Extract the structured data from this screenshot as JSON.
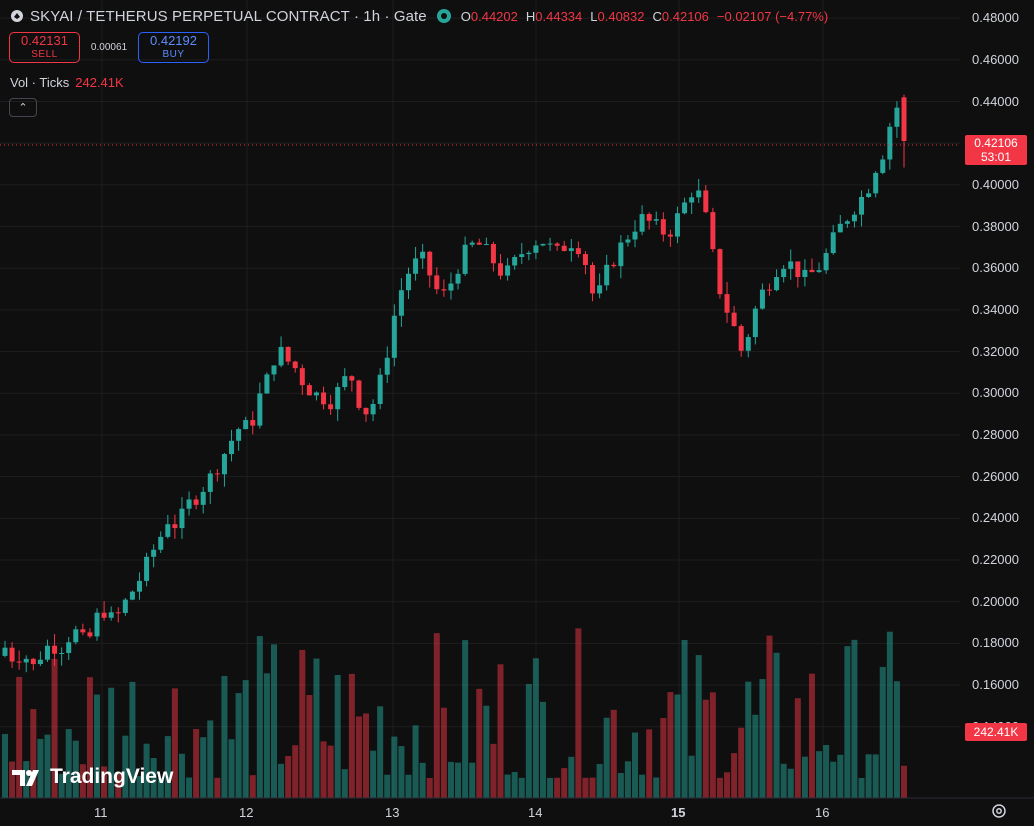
{
  "header": {
    "title": "SKYAI / TETHERUS PERPETUAL CONTRACT · 1h · Gate",
    "ohlc": [
      {
        "k": "O",
        "v": "0.44202"
      },
      {
        "k": "H",
        "v": "0.44334"
      },
      {
        "k": "L",
        "v": "0.40832"
      },
      {
        "k": "C",
        "v": "0.42106"
      },
      {
        "k": "",
        "v": "−0.02107 (−4.77%)"
      }
    ]
  },
  "trade": {
    "sell_price": "0.42131",
    "sell_label": "SELL",
    "spread": "0.00061",
    "buy_price": "0.42192",
    "buy_label": "BUY"
  },
  "volume_legend": {
    "label": "Vol · Ticks",
    "value": "242.41K"
  },
  "last_price": {
    "value": "0.42106",
    "countdown": "53:01"
  },
  "volume_tag": "242.41K",
  "watermark": "TradingView",
  "colors": {
    "up": "#26a69a",
    "down": "#f23645",
    "background": "#0f0f0f",
    "grid": "#1e1e1e"
  },
  "icons": {
    "symbol": "symbol-logo-icon",
    "status": "market-open-icon",
    "collapse": "chevron-up-icon",
    "settings": "gear-icon"
  },
  "chart_data": {
    "type": "candlestick",
    "y_ticks": [
      "0.48000",
      "0.46000",
      "0.44000",
      "0.42000",
      "0.40000",
      "0.38000",
      "0.36000",
      "0.34000",
      "0.32000",
      "0.30000",
      "0.28000",
      "0.26000",
      "0.24000",
      "0.22000",
      "0.20000",
      "0.18000",
      "0.16000",
      "0.14000"
    ],
    "ylim": [
      0.125,
      0.482
    ],
    "x_ticks": [
      "11",
      "12",
      "13",
      "14",
      "15",
      "16"
    ],
    "x_tick_bold": [
      false,
      false,
      false,
      false,
      true,
      false
    ],
    "close_path": [
      0.178,
      0.172,
      0.176,
      0.168,
      0.175,
      0.18,
      0.177,
      0.183,
      0.186,
      0.178,
      0.192,
      0.196,
      0.19,
      0.198,
      0.205,
      0.212,
      0.222,
      0.23,
      0.24,
      0.236,
      0.246,
      0.25,
      0.256,
      0.262,
      0.27,
      0.278,
      0.285,
      0.283,
      0.298,
      0.308,
      0.322,
      0.316,
      0.312,
      0.304,
      0.3,
      0.298,
      0.296,
      0.304,
      0.31,
      0.296,
      0.29,
      0.3,
      0.318,
      0.34,
      0.355,
      0.362,
      0.364,
      0.355,
      0.345,
      0.352,
      0.362,
      0.37,
      0.372,
      0.368,
      0.362,
      0.356,
      0.362,
      0.368,
      0.372,
      0.374,
      0.37,
      0.367,
      0.373,
      0.372,
      0.362,
      0.342,
      0.356,
      0.364,
      0.372,
      0.378,
      0.384,
      0.382,
      0.379,
      0.376,
      0.384,
      0.392,
      0.4,
      0.388,
      0.365,
      0.344,
      0.336,
      0.32,
      0.33,
      0.346,
      0.352,
      0.36,
      0.364,
      0.36,
      0.355,
      0.358,
      0.362,
      0.372,
      0.38,
      0.386,
      0.392,
      0.398,
      0.41,
      0.418,
      0.442,
      0.421
    ],
    "volume_unit": "K",
    "volume_max": 242.41
  }
}
